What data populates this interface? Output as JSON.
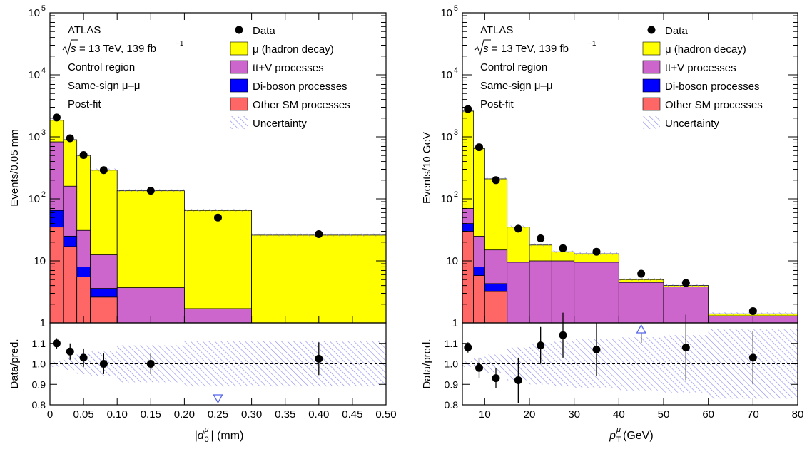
{
  "colors": {
    "hadron": "#ffff00",
    "ttv": "#cc66cc",
    "diboson": "#0000ff",
    "other": "#ff6666",
    "uncertainty": "#8888ee"
  },
  "chart_data": [
    {
      "type": "histogram",
      "id": "d0",
      "scale": "log",
      "ylabel": "Events/0.05 mm",
      "ratio_ylabel": "Data/pred.",
      "xlabel_main": "|d",
      "xlabel_sub": "0",
      "xlabel_sup": "μ",
      "xlabel_unit": "| (mm)",
      "xlim": [
        0,
        0.5
      ],
      "ylim": [
        1,
        100000
      ],
      "ratio_ylim": [
        0.8,
        1.2
      ],
      "x_ticks": [
        0,
        0.05,
        0.1,
        0.15,
        0.2,
        0.25,
        0.3,
        0.35,
        0.4,
        0.45,
        0.5
      ],
      "x_tick_labels": [
        "0",
        "0.05",
        "0.10",
        "0.15",
        "0.20",
        "0.25",
        "0.30",
        "0.35",
        "0.40",
        "0.45",
        "0.50"
      ],
      "ratio_ticks": [
        0.8,
        0.9,
        1.0,
        1.1
      ],
      "ratio_tick_labels": [
        "0.8",
        "0.9",
        "1.0",
        "1.1"
      ],
      "y_ticks": [
        {
          "v": 1,
          "b": "1"
        },
        {
          "v": 10,
          "b": "10"
        },
        {
          "v": 100,
          "b": "10",
          "e": "2"
        },
        {
          "v": 1000,
          "b": "10",
          "e": "3"
        },
        {
          "v": 10000,
          "b": "10",
          "e": "4"
        },
        {
          "v": 100000,
          "b": "10",
          "e": "5"
        }
      ],
      "bin_edges": [
        0,
        0.02,
        0.04,
        0.06,
        0.1,
        0.2,
        0.3,
        0.5
      ],
      "series": [
        {
          "name": "Other SM processes",
          "color_key": "other",
          "values": [
            35,
            17,
            5.5,
            2.6,
            1,
            1,
            1
          ]
        },
        {
          "name": "Di-boson processes",
          "color_key": "diboson",
          "values": [
            65,
            25,
            8,
            3.6,
            1,
            1,
            1
          ]
        },
        {
          "name": "tt̄+V processes",
          "color_key": "ttv",
          "values": [
            830,
            160,
            31,
            12.5,
            3.7,
            1.7,
            1
          ]
        },
        {
          "name": "μ (hadron decay)",
          "color_key": "hadron",
          "values": [
            1850,
            900,
            500,
            290,
            135,
            65,
            26
          ]
        }
      ],
      "data_points": {
        "x": [
          0.01,
          0.03,
          0.05,
          0.08,
          0.15,
          0.25,
          0.4
        ],
        "y": [
          2050,
          950,
          510,
          290,
          135,
          50,
          27
        ]
      },
      "ratio_points": {
        "x": [
          0.01,
          0.03,
          0.05,
          0.08,
          0.15,
          0.4
        ],
        "y": [
          1.1,
          1.06,
          1.03,
          1.0,
          1.0,
          1.025
        ],
        "err": [
          0.025,
          0.04,
          0.045,
          0.05,
          0.05,
          0.08
        ]
      },
      "ratio_band": [
        0.015,
        0.03,
        0.05,
        0.06,
        0.09,
        0.11,
        0.11
      ],
      "ratio_arrow": {
        "x": 0.25,
        "direction": "down"
      },
      "text_block": [
        "ATLAS",
        "= 13 TeV, 139 fb",
        "Control region",
        "Same-sign μ–μ",
        "Post-fit"
      ],
      "legend_position": "top-right"
    },
    {
      "type": "histogram",
      "id": "pt",
      "scale": "log",
      "ylabel": "Events/10 GeV",
      "ratio_ylabel": "Data/pred.",
      "xlabel_main": "p",
      "xlabel_sub": "T",
      "xlabel_sup": "μ",
      "xlabel_unit": " (GeV)",
      "xlim": [
        5,
        80
      ],
      "ylim": [
        1,
        100000
      ],
      "ratio_ylim": [
        0.8,
        1.2
      ],
      "x_ticks": [
        10,
        20,
        30,
        40,
        50,
        60,
        70,
        80
      ],
      "x_tick_labels": [
        "10",
        "20",
        "30",
        "40",
        "50",
        "60",
        "70",
        "80"
      ],
      "ratio_ticks": [
        0.8,
        0.9,
        1.0,
        1.1
      ],
      "ratio_tick_labels": [
        "0.8",
        "0.9",
        "1.0",
        "1.1"
      ],
      "y_ticks": [
        {
          "v": 1,
          "b": "1"
        },
        {
          "v": 10,
          "b": "10"
        },
        {
          "v": 100,
          "b": "10",
          "e": "2"
        },
        {
          "v": 1000,
          "b": "10",
          "e": "3"
        },
        {
          "v": 10000,
          "b": "10",
          "e": "4"
        },
        {
          "v": 100000,
          "b": "10",
          "e": "5"
        }
      ],
      "bin_edges": [
        5,
        7.5,
        10,
        15,
        20,
        25,
        30,
        40,
        50,
        60,
        80
      ],
      "series": [
        {
          "name": "Other SM processes",
          "color_key": "other",
          "values": [
            30,
            5.8,
            3.2,
            1,
            1,
            1,
            1,
            1,
            1,
            1
          ]
        },
        {
          "name": "Di-boson processes",
          "color_key": "diboson",
          "values": [
            40,
            8,
            4.3,
            1,
            1,
            1,
            1,
            1,
            1,
            1
          ]
        },
        {
          "name": "tt̄+V processes",
          "color_key": "ttv",
          "values": [
            70,
            25,
            15,
            9.5,
            10,
            10,
            9.5,
            4.5,
            3.8,
            1.3
          ]
        },
        {
          "name": "μ (hadron decay)",
          "color_key": "hadron",
          "values": [
            2600,
            650,
            210,
            35,
            18,
            14,
            13,
            5,
            4,
            1.4
          ]
        }
      ],
      "data_points": {
        "x": [
          6.25,
          8.75,
          12.5,
          17.5,
          22.5,
          27.5,
          35,
          45,
          55,
          70
        ],
        "y": [
          2800,
          680,
          200,
          33,
          23,
          16,
          14,
          6.2,
          4.4,
          1.55
        ]
      },
      "ratio_points": {
        "x": [
          6.25,
          8.75,
          12.5,
          17.5,
          22.5,
          27.5,
          35,
          55,
          70
        ],
        "y": [
          1.08,
          0.98,
          0.93,
          0.92,
          1.09,
          1.14,
          1.07,
          1.08,
          1.03
        ],
        "err": [
          0.025,
          0.05,
          0.05,
          0.11,
          0.09,
          0.11,
          0.13,
          0.16,
          0.13
        ]
      },
      "ratio_band": [
        0.015,
        0.03,
        0.045,
        0.08,
        0.1,
        0.11,
        0.12,
        0.13,
        0.14,
        0.17
      ],
      "ratio_arrow": {
        "x": 45,
        "direction": "up"
      },
      "text_block": [
        "ATLAS",
        "= 13 TeV, 139 fb",
        "Control region",
        "Same-sign μ–μ",
        "Post-fit"
      ],
      "legend_position": "top-right"
    }
  ],
  "legend": [
    {
      "label": "Data",
      "kind": "marker"
    },
    {
      "label": "μ (hadron decay)",
      "kind": "fill",
      "color_key": "hadron"
    },
    {
      "label": "tt̄+V processes",
      "kind": "fill",
      "color_key": "ttv"
    },
    {
      "label": "Di-boson processes",
      "kind": "fill",
      "color_key": "diboson"
    },
    {
      "label": "Other SM processes",
      "kind": "fill",
      "color_key": "other"
    },
    {
      "label": "Uncertainty",
      "kind": "hatch",
      "color_key": "uncertainty"
    }
  ]
}
